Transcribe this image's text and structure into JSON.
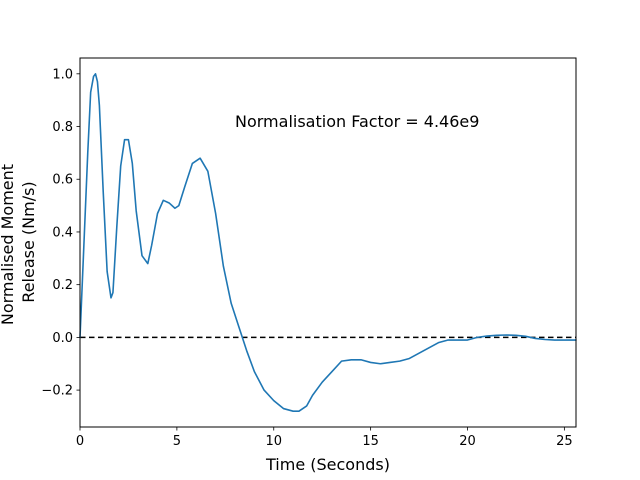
{
  "chart_data": {
    "type": "line",
    "xlabel": "Time (Seconds)",
    "ylabel_lines": [
      "Normalised Moment",
      "Release (Nm/s)"
    ],
    "annotation": "Normalisation Factor = 4.46e9",
    "xlim": [
      0,
      25.6
    ],
    "ylim": [
      -0.34,
      1.06
    ],
    "x_ticks": [
      0,
      5,
      10,
      15,
      20,
      25
    ],
    "y_ticks": [
      -0.2,
      0.0,
      0.2,
      0.4,
      0.6,
      0.8,
      1.0
    ],
    "x_tick_labels": [
      "0",
      "5",
      "10",
      "15",
      "20",
      "25"
    ],
    "y_tick_labels": [
      "−0.2",
      "0.0",
      "0.2",
      "0.4",
      "0.6",
      "0.8",
      "1.0"
    ],
    "grid": false,
    "reference_line": {
      "y": 0.0,
      "style": "dashed",
      "color": "#000000"
    },
    "series": [
      {
        "color": "#1f77b4",
        "x": [
          0,
          0.2,
          0.4,
          0.55,
          0.7,
          0.8,
          0.9,
          1.0,
          1.2,
          1.4,
          1.6,
          1.7,
          1.9,
          2.1,
          2.3,
          2.5,
          2.7,
          2.9,
          3.2,
          3.5,
          3.7,
          4.0,
          4.3,
          4.6,
          4.9,
          5.1,
          5.4,
          5.8,
          6.2,
          6.6,
          7.0,
          7.4,
          7.8,
          8.2,
          8.6,
          9.0,
          9.5,
          10.0,
          10.5,
          11.0,
          11.3,
          11.7,
          12.0,
          12.5,
          13.0,
          13.5,
          14.0,
          14.5,
          15.0,
          15.5,
          16.0,
          16.5,
          17.0,
          17.5,
          18.0,
          18.5,
          19.0,
          19.5,
          20.0,
          20.5,
          21.0,
          21.5,
          22.0,
          22.5,
          23.0,
          23.5,
          24.0,
          24.5,
          25.0,
          25.6
        ],
        "y": [
          0.0,
          0.35,
          0.7,
          0.93,
          0.99,
          1.0,
          0.97,
          0.88,
          0.55,
          0.25,
          0.15,
          0.17,
          0.42,
          0.65,
          0.75,
          0.75,
          0.66,
          0.48,
          0.31,
          0.28,
          0.35,
          0.47,
          0.52,
          0.51,
          0.49,
          0.5,
          0.57,
          0.66,
          0.68,
          0.63,
          0.47,
          0.27,
          0.13,
          0.04,
          -0.05,
          -0.13,
          -0.2,
          -0.24,
          -0.27,
          -0.28,
          -0.28,
          -0.26,
          -0.22,
          -0.17,
          -0.13,
          -0.09,
          -0.085,
          -0.085,
          -0.095,
          -0.1,
          -0.095,
          -0.09,
          -0.08,
          -0.06,
          -0.04,
          -0.02,
          -0.01,
          -0.01,
          -0.01,
          0.0,
          0.005,
          0.008,
          0.009,
          0.008,
          0.004,
          -0.004,
          -0.008,
          -0.01,
          -0.01,
          -0.01
        ]
      }
    ]
  }
}
